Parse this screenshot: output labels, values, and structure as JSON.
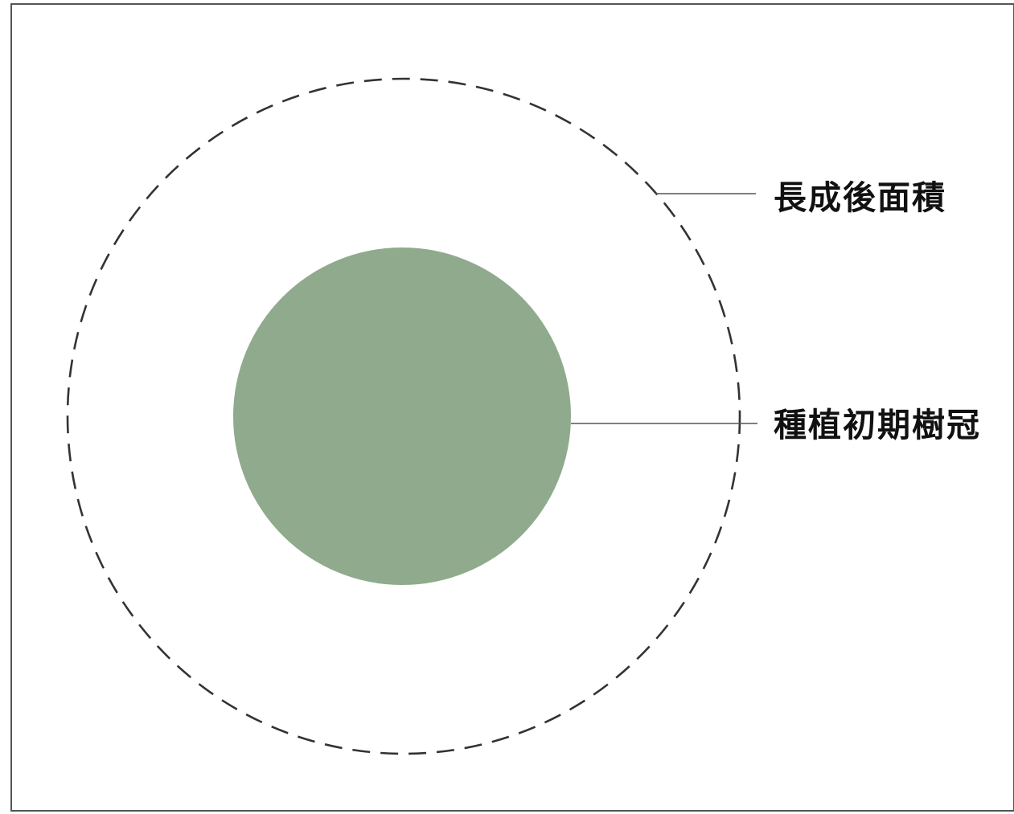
{
  "diagram": {
    "labels": {
      "mature_area": "長成後面積",
      "initial_canopy": "種植初期樹冠"
    },
    "colors": {
      "canopy_fill": "#8faa8c",
      "outline": "#333333",
      "frame": "#555555",
      "leader": "#555555",
      "text": "#111111"
    }
  }
}
